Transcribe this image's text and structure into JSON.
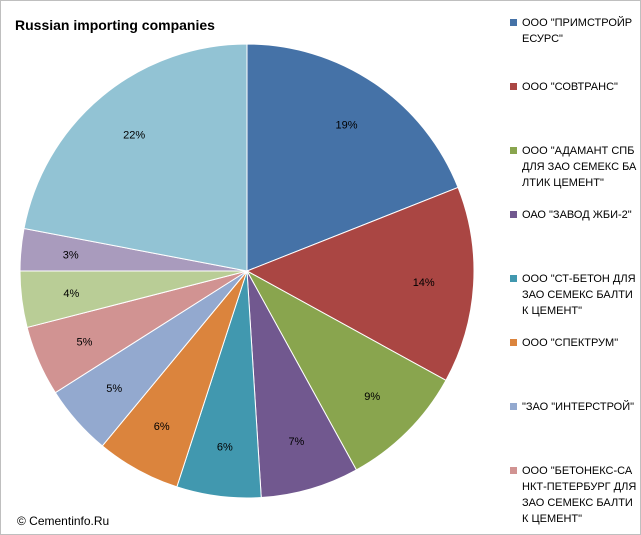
{
  "chart_data": {
    "type": "pie",
    "title": "Russian importing companies",
    "source": "© Cementinfo.Ru",
    "legend_position": "right",
    "slices": [
      {
        "label": "ООО \"ПРИМСТРОЙРЕСУРС\"",
        "value": 19,
        "value_label": "19%",
        "color": "#4572A7"
      },
      {
        "label": "ООО \"СОВТРАНС\"",
        "value": 14,
        "value_label": "14%",
        "color": "#AA4643"
      },
      {
        "label": "ООО \"АДАМАНТ СПБ ДЛЯ ЗАО СЕМЕКС БАЛТИК ЦЕМЕНТ\"",
        "value": 9,
        "value_label": "9%",
        "color": "#89A54E"
      },
      {
        "label": "ОАО \"ЗАВОД ЖБИ-2\"",
        "value": 7,
        "value_label": "7%",
        "color": "#71588F"
      },
      {
        "label": "ООО \"СТ-БЕТОН ДЛЯ ЗАО СЕМЕКС БАЛТИК ЦЕМЕНТ\"",
        "value": 6,
        "value_label": "6%",
        "color": "#4198AF"
      },
      {
        "label": "ООО \"СПЕКТРУМ\"",
        "value": 6,
        "value_label": "6%",
        "color": "#DB843D"
      },
      {
        "label": "\"ЗАО \"ИНТЕРСТРОЙ\"",
        "value": 5,
        "value_label": "5%",
        "color": "#93A9CF"
      },
      {
        "label": "ООО \"БЕТОНЕКС-САНКТ-ПЕТЕРБУРГ ДЛЯ ЗАО СЕМЕКС БАЛТИК ЦЕМЕНТ\"",
        "value": 5,
        "value_label": "5%",
        "color": "#D19392"
      },
      {
        "label": "",
        "value": 4,
        "value_label": "4%",
        "color": "#B9CD96"
      },
      {
        "label": "",
        "value": 3,
        "value_label": "3%",
        "color": "#A99BBD"
      },
      {
        "label": "",
        "value": 22,
        "value_label": "22%",
        "color": "#92C3D4"
      }
    ]
  }
}
